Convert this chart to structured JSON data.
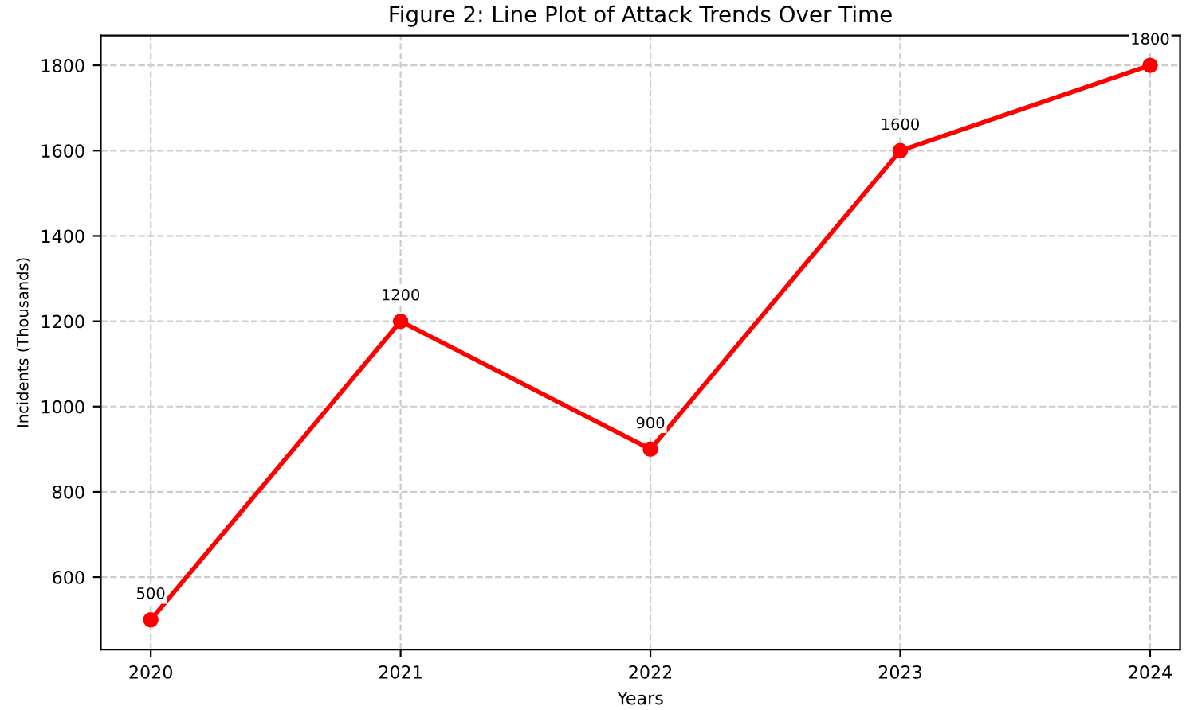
{
  "chart_data": {
    "type": "line",
    "title": "Figure 2: Line Plot of Attack Trends Over Time",
    "xlabel": "Years",
    "ylabel": "Incidents (Thousands)",
    "x": [
      2020,
      2021,
      2022,
      2023,
      2024
    ],
    "series": [
      {
        "color": "#ff0000",
        "values": [
          500,
          1200,
          900,
          1600,
          1800
        ]
      }
    ],
    "xlim": [
      2019.8,
      2024.12
    ],
    "xticks": [
      2020,
      2021,
      2022,
      2023,
      2024
    ],
    "ylim": [
      430,
      1870
    ],
    "yticks": [
      600,
      800,
      1000,
      1200,
      1400,
      1600,
      1800
    ],
    "grid": true,
    "marker": "circle",
    "line_style": "solid",
    "data_labels": true
  }
}
